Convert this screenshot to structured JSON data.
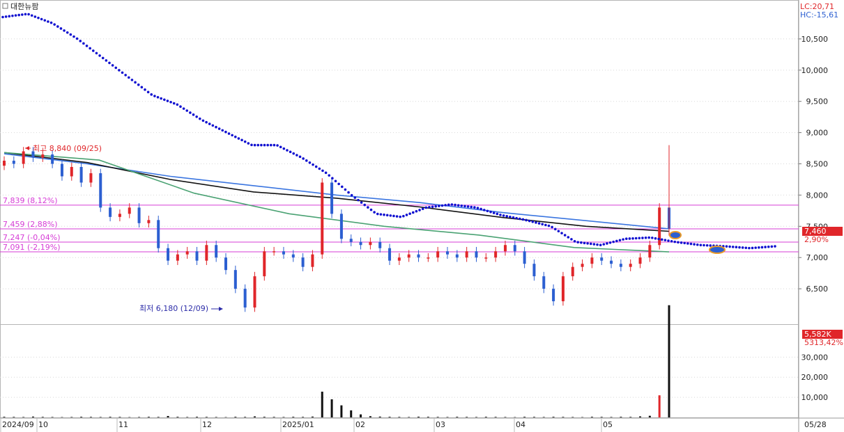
{
  "stock_name": "대한뉴팜",
  "corner_info": {
    "lc": "LC:20,71",
    "hc": "HC:-15,61"
  },
  "colors": {
    "up": "#e0262a",
    "down": "#2c5fd1",
    "ma_black": "#111111",
    "ma_green": "#4aa273",
    "ma_blue": "#3a75e0",
    "ichimoku_dots": "#1010d0",
    "level_line": "#d63cd6",
    "price_badge": "#e0262a",
    "grid": "#d8d8d8"
  },
  "price_axis": {
    "ticks": [
      "10,500",
      "10,000",
      "9,500",
      "9,000",
      "8,500",
      "8,000",
      "7,500",
      "7,000",
      "6,500"
    ]
  },
  "volume_axis": {
    "ticks": [
      "30,000",
      "20,000",
      "10,000"
    ]
  },
  "x_axis": {
    "labels": [
      "2024/09",
      "10",
      "11",
      "12",
      "2025/01",
      "02",
      "03",
      "04",
      "05"
    ],
    "right_label": "05/28"
  },
  "annotations": {
    "high": "최고 8,840 (09/25)",
    "low": "최저 6,180 (12/09)"
  },
  "levels": [
    {
      "label": "7,839 (8,12%)",
      "value": 7839
    },
    {
      "label": "7,459 (2,88%)",
      "value": 7459
    },
    {
      "label": "7,247 (-0,04%)",
      "value": 7247
    },
    {
      "label": "7,091 (-2,19%)",
      "value": 7091
    }
  ],
  "current_price_badge": "7,460",
  "current_change": "2,90%",
  "volume_badge": "5,582K",
  "volume_change": "5313,42%",
  "chart_data": {
    "type": "candlestick",
    "ylim": [
      6000,
      10900
    ],
    "volume_ylim": [
      0,
      45000
    ],
    "ma_long": [
      8660,
      8500,
      8300,
      8150,
      8000,
      7880,
      7720,
      7590,
      7460
    ],
    "ma_mid": [
      8680,
      8520,
      8250,
      8050,
      7950,
      7810,
      7640,
      7500,
      7420
    ],
    "ma_short": [
      8680,
      8560,
      8030,
      7700,
      7500,
      7360,
      7160,
      7090
    ],
    "closes": [
      8550,
      8500,
      8700,
      8600,
      8650,
      8500,
      8300,
      8450,
      8200,
      8350,
      7800,
      7650,
      7700,
      7800,
      7550,
      7600,
      7150,
      6950,
      7050,
      7100,
      6950,
      7200,
      7000,
      6800,
      6500,
      6200,
      6700,
      7100,
      7100,
      7050,
      7000,
      6850,
      7050,
      8200,
      7700,
      7300,
      7250,
      7200,
      7250,
      7150,
      6950,
      7000,
      7050,
      7000,
      7000,
      7100,
      7050,
      7000,
      7100,
      7000,
      7000,
      7100,
      7200,
      7100,
      6900,
      6700,
      6500,
      6300,
      6700,
      6850,
      6900,
      7000,
      6950,
      6900,
      6850,
      6900,
      7000,
      7200,
      7800,
      7460
    ],
    "volumes": [
      300,
      250,
      200,
      400,
      250,
      200,
      150,
      200,
      300,
      250,
      200,
      300,
      250,
      150,
      200,
      300,
      250,
      700,
      300,
      200,
      300,
      250,
      200,
      150,
      300,
      250,
      500,
      300,
      250,
      200,
      300,
      250,
      400,
      12800,
      9000,
      6000,
      3500,
      1500,
      600,
      400,
      300,
      250,
      200,
      350,
      300,
      250,
      200,
      300,
      250,
      200,
      300,
      250,
      200,
      150,
      300,
      250,
      200,
      300,
      250,
      200,
      150,
      300,
      250,
      200,
      300,
      250,
      500,
      800,
      11000,
      55820
    ],
    "ichimoku_span": [
      10850,
      10900,
      10750,
      10500,
      10200,
      9900,
      9600,
      9450,
      9200,
      9000,
      8800,
      8800,
      8600,
      8350,
      8000,
      7700,
      7650,
      7800,
      7850,
      7800,
      7680,
      7600,
      7500,
      7250,
      7200,
      7300,
      7320,
      7250,
      7200,
      7180,
      7150,
      7180
    ],
    "current": 7460
  }
}
